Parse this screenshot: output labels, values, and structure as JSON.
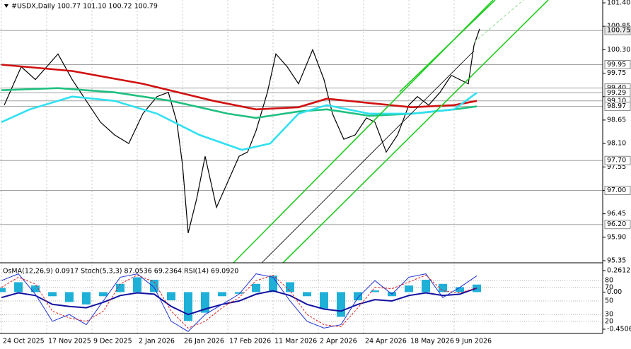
{
  "chart_data": [
    {
      "type": "line",
      "header": "#USDX,Daily  100.77 101.10 100.72 100.79",
      "xlim": [
        -0.5,
        212.5
      ],
      "xticks": [
        {
          "value": 0,
          "label": "24 Oct 2025"
        },
        {
          "value": 16,
          "label": "17 Nov 2025"
        },
        {
          "value": 32,
          "label": "9 Dec 2025"
        },
        {
          "value": 48,
          "label": "2 Jan 2026"
        },
        {
          "value": 64,
          "label": "26 Jan 2026"
        },
        {
          "value": 80,
          "label": "17 Feb 2026"
        },
        {
          "value": 96,
          "label": "11 Mar 2026"
        },
        {
          "value": 112,
          "label": "2 Apr 2026"
        },
        {
          "value": 128,
          "label": "24 Apr 2026"
        },
        {
          "value": 144,
          "label": "18 May 2026"
        },
        {
          "value": 160,
          "label": "9 Jun 2026"
        }
      ],
      "ylim": [
        95.35,
        101.4
      ],
      "yticks": [
        {
          "value": 101.4,
          "label": "101.40"
        },
        100.85,
        {
          "value": 100.3,
          "label": "100.30"
        },
        99.75,
        {
          "value": 99.2,
          "label": "99.20"
        },
        98.65,
        {
          "value": 98.1,
          "label": "98.10"
        },
        97.55,
        {
          "value": 97,
          "label": "97.00"
        },
        96.45,
        {
          "value": 95.9,
          "label": "95.90"
        },
        95.35
      ],
      "levels": [
        100.75,
        99.95,
        {
          "value": 99.4,
          "label": "99.40"
        },
        99.29,
        {
          "value": 99.1,
          "label": "99.10"
        },
        98.97,
        {
          "value": 97.7,
          "label": "97.70"
        },
        {
          "value": 97,
          "label": "97.00"
        },
        {
          "value": 96.2,
          "label": "96.20"
        }
      ],
      "series": [
        {
          "color": "#000000",
          "x": [
            1,
            7,
            12,
            20,
            25,
            30,
            35,
            40,
            45,
            50,
            55,
            59,
            62,
            64,
            66,
            69,
            72,
            76,
            80,
            84,
            87,
            90,
            94,
            97,
            101,
            105,
            110,
            114,
            117,
            121,
            125,
            129,
            132,
            136,
            140,
            144,
            147,
            151,
            155,
            159,
            162,
            165,
            167,
            169
          ],
          "values": [
            99.0,
            99.9,
            99.6,
            100.2,
            99.6,
            99.1,
            98.6,
            98.3,
            98.1,
            98.8,
            99.2,
            99.3,
            98.6,
            97.6,
            96.0,
            96.8,
            97.8,
            96.6,
            97.2,
            97.8,
            97.9,
            98.4,
            99.3,
            100.2,
            99.9,
            99.5,
            100.3,
            99.6,
            98.8,
            98.2,
            98.3,
            98.7,
            98.6,
            97.9,
            98.3,
            99.0,
            99.2,
            99.0,
            99.3,
            99.7,
            99.6,
            99.5,
            100.4,
            100.79
          ]
        },
        {
          "color": "#d01010",
          "x": [
            0,
            25,
            50,
            75,
            90,
            105,
            115,
            130,
            145,
            160,
            168
          ],
          "values": [
            99.95,
            99.8,
            99.5,
            99.1,
            98.9,
            98.95,
            99.15,
            99.05,
            98.95,
            99.0,
            99.1
          ]
        },
        {
          "color": "#20c080",
          "x": [
            0,
            20,
            40,
            60,
            80,
            90,
            105,
            115,
            130,
            145,
            160,
            168
          ],
          "values": [
            99.35,
            99.4,
            99.3,
            99.1,
            98.8,
            98.7,
            98.85,
            98.9,
            98.75,
            98.8,
            98.9,
            98.97
          ]
        },
        {
          "color": "#30e0f0",
          "x": [
            0,
            10,
            25,
            40,
            55,
            70,
            85,
            95,
            105,
            115,
            130,
            145,
            160,
            168
          ],
          "values": [
            98.6,
            98.9,
            99.2,
            99.1,
            98.8,
            98.3,
            97.95,
            98.1,
            98.8,
            99.0,
            98.8,
            98.8,
            98.9,
            99.29
          ]
        }
      ]
    },
    {
      "type": "oscillator",
      "header": "OsMA(12,26,9) 0.0917 Stoch(5,3,3) 87.0536 69.2364 RSI(14) 69.0920",
      "xlim": [
        -0.5,
        212.5
      ],
      "x": [
        0,
        6,
        12,
        18,
        24,
        30,
        36,
        42,
        48,
        54,
        60,
        66,
        72,
        78,
        84,
        90,
        96,
        102,
        108,
        114,
        120,
        126,
        132,
        138,
        144,
        150,
        156,
        162,
        168
      ],
      "ylim": [
        -0.4506,
        0.2612
      ],
      "yticks": [
        0.2612,
        {
          "value": 0,
          "label": "0.00"
        },
        -0.4506
      ],
      "y2lim": [
        0,
        100
      ],
      "y2ticks": [
        80,
        70,
        50,
        30,
        20
      ],
      "series": [
        {
          "type": "histogram",
          "color": "#1fb0d8",
          "values": [
            0.05,
            0.12,
            0.08,
            -0.05,
            -0.12,
            -0.15,
            -0.05,
            0.1,
            0.18,
            0.15,
            -0.1,
            -0.35,
            -0.25,
            -0.05,
            -0.02,
            0.1,
            0.2,
            0.12,
            -0.05,
            -0.2,
            -0.3,
            -0.1,
            0.02,
            -0.05,
            0.08,
            0.15,
            0.1,
            0.06,
            0.0917
          ]
        },
        {
          "color": "#1010a0",
          "axis": "y2",
          "values": [
            55,
            62,
            58,
            45,
            42,
            40,
            48,
            58,
            62,
            60,
            42,
            30,
            38,
            45,
            50,
            60,
            65,
            58,
            45,
            38,
            35,
            45,
            52,
            50,
            58,
            62,
            58,
            60,
            69.092
          ]
        },
        {
          "color": "#2030d0",
          "axis": "y2",
          "values": [
            80,
            90,
            60,
            20,
            30,
            15,
            50,
            85,
            90,
            70,
            20,
            5,
            30,
            45,
            60,
            90,
            85,
            50,
            20,
            10,
            15,
            55,
            80,
            60,
            85,
            90,
            55,
            70,
            87.0536
          ]
        },
        {
          "color": "#e02020",
          "axis": "y2",
          "dashed": true,
          "values": [
            70,
            85,
            75,
            35,
            25,
            20,
            35,
            75,
            88,
            78,
            35,
            10,
            20,
            40,
            55,
            80,
            88,
            65,
            30,
            15,
            12,
            40,
            70,
            68,
            78,
            88,
            65,
            62,
            69.2364
          ]
        }
      ]
    }
  ]
}
